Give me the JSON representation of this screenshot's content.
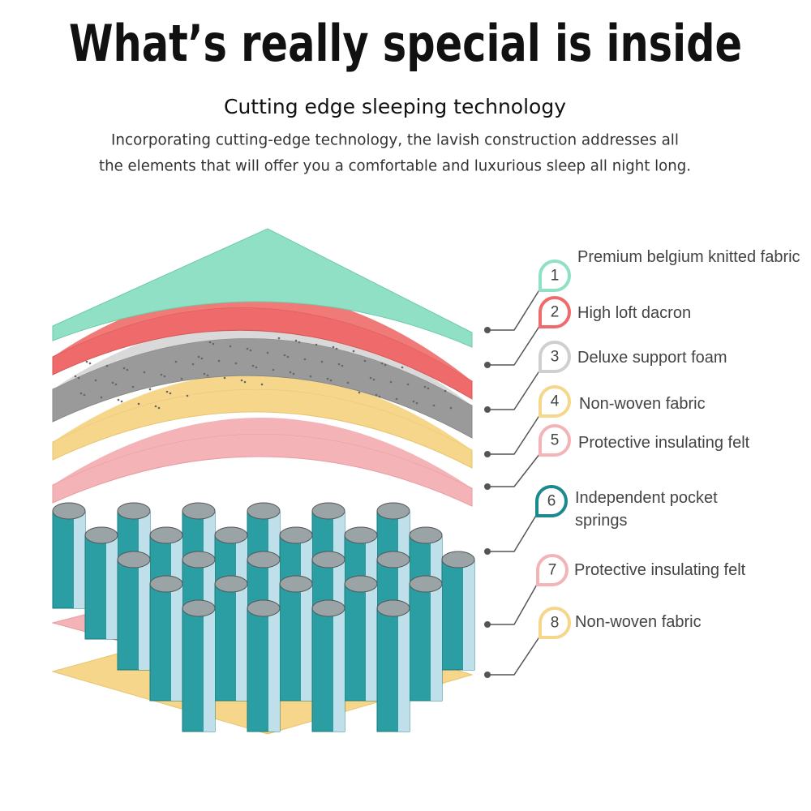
{
  "header": {
    "title": "What’s really special is inside",
    "subtitle": "Cutting edge sleeping technology",
    "description": [
      "Incorporating cutting-edge technology, the lavish construction addresses all",
      "the elements that will offer you a comfortable and luxurious sleep all night long."
    ]
  },
  "layers": [
    {
      "number": 1,
      "label": "Premium belgium knitted fabric"
    },
    {
      "number": 2,
      "label": "High loft dacron"
    },
    {
      "number": 3,
      "label": "Deluxe support foam"
    },
    {
      "number": 4,
      "label": "Non-woven fabric"
    },
    {
      "number": 5,
      "label": "Protective insulating felt"
    },
    {
      "number": 6,
      "label": "Independent pocket springs"
    },
    {
      "number": 7,
      "label": "Protective insulating felt"
    },
    {
      "number": 8,
      "label": "Non-woven fabric"
    }
  ]
}
